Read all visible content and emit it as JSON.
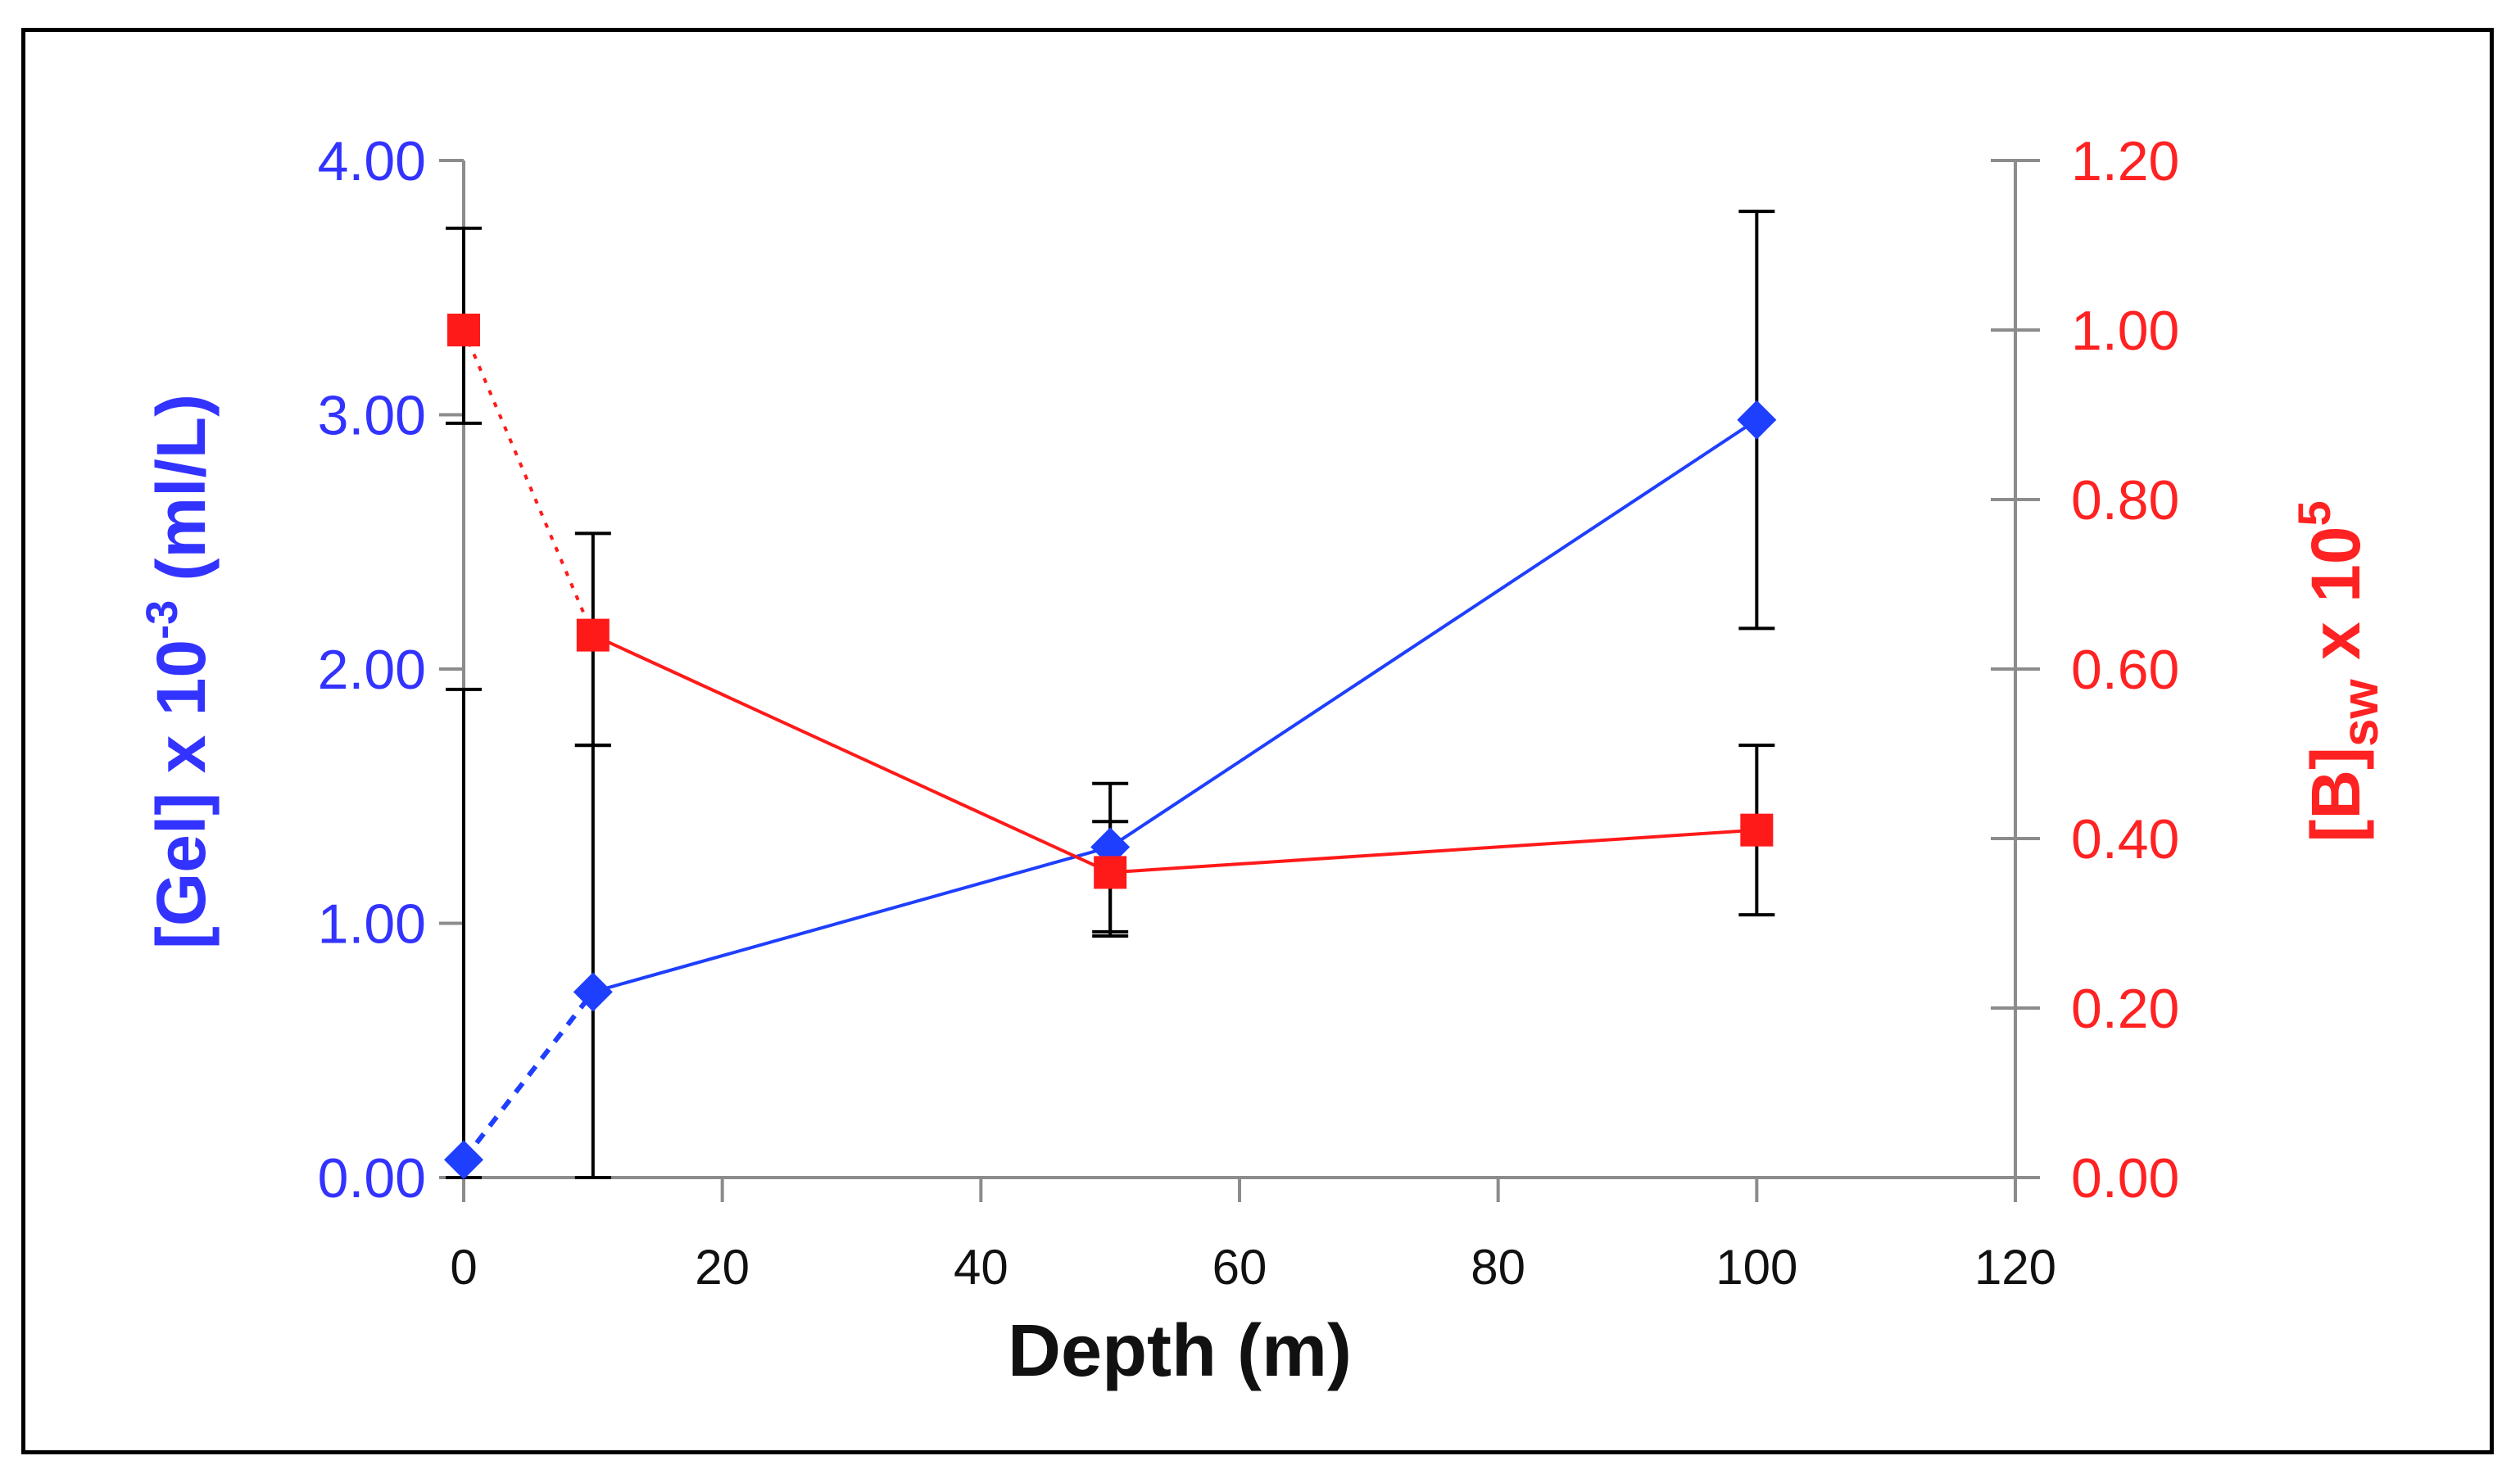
{
  "chart_data": {
    "type": "line",
    "title": "",
    "xlabel": "Depth (m)",
    "xlim": [
      0,
      120
    ],
    "xticks": [
      "0",
      "20",
      "40",
      "60",
      "80",
      "100",
      "120"
    ],
    "xtick_values": [
      0,
      20,
      40,
      60,
      80,
      100,
      120
    ],
    "left_axis": {
      "label_parts": [
        "[Gel] x 10",
        "-3",
        " (ml/L)"
      ],
      "ylim": [
        0,
        4
      ],
      "ticks": [
        "0.00",
        "1.00",
        "2.00",
        "3.00",
        "4.00"
      ],
      "tick_values": [
        0,
        1,
        2,
        3,
        4
      ],
      "color": "#3333ff"
    },
    "right_axis": {
      "label_parts": [
        "[B]",
        "sw",
        " x 10",
        "5"
      ],
      "ylim": [
        0,
        1.2
      ],
      "ticks": [
        "0.00",
        "0.20",
        "0.40",
        "0.60",
        "0.80",
        "1.00",
        "1.20"
      ],
      "tick_values": [
        0,
        0.2,
        0.4,
        0.6,
        0.8,
        1.0,
        1.2
      ],
      "color": "#ff2222"
    },
    "series": [
      {
        "name": "[Gel] x 10^-3 (ml/L)",
        "axis": "left",
        "marker": "diamond",
        "color": "#1f3fff",
        "x": [
          0,
          10,
          50,
          100
        ],
        "values": [
          0.07,
          0.73,
          1.3,
          2.98
        ],
        "error_low": [
          0.07,
          0.73,
          0.35,
          0.82
        ],
        "error_high": [
          1.85,
          0.97,
          0.25,
          0.82
        ],
        "dashed_segments": [
          0
        ]
      },
      {
        "name": "[B]sw x 10^5",
        "axis": "right",
        "marker": "square",
        "color": "#ff1a1a",
        "x": [
          0,
          10,
          50,
          100
        ],
        "values": [
          1.0,
          0.64,
          0.36,
          0.41
        ],
        "error_low": [
          0.11,
          0.13,
          0.07,
          0.1
        ],
        "error_high": [
          0.12,
          0.12,
          0.06,
          0.1
        ],
        "dashed_segments": [
          0
        ]
      }
    ],
    "legend": "none"
  }
}
